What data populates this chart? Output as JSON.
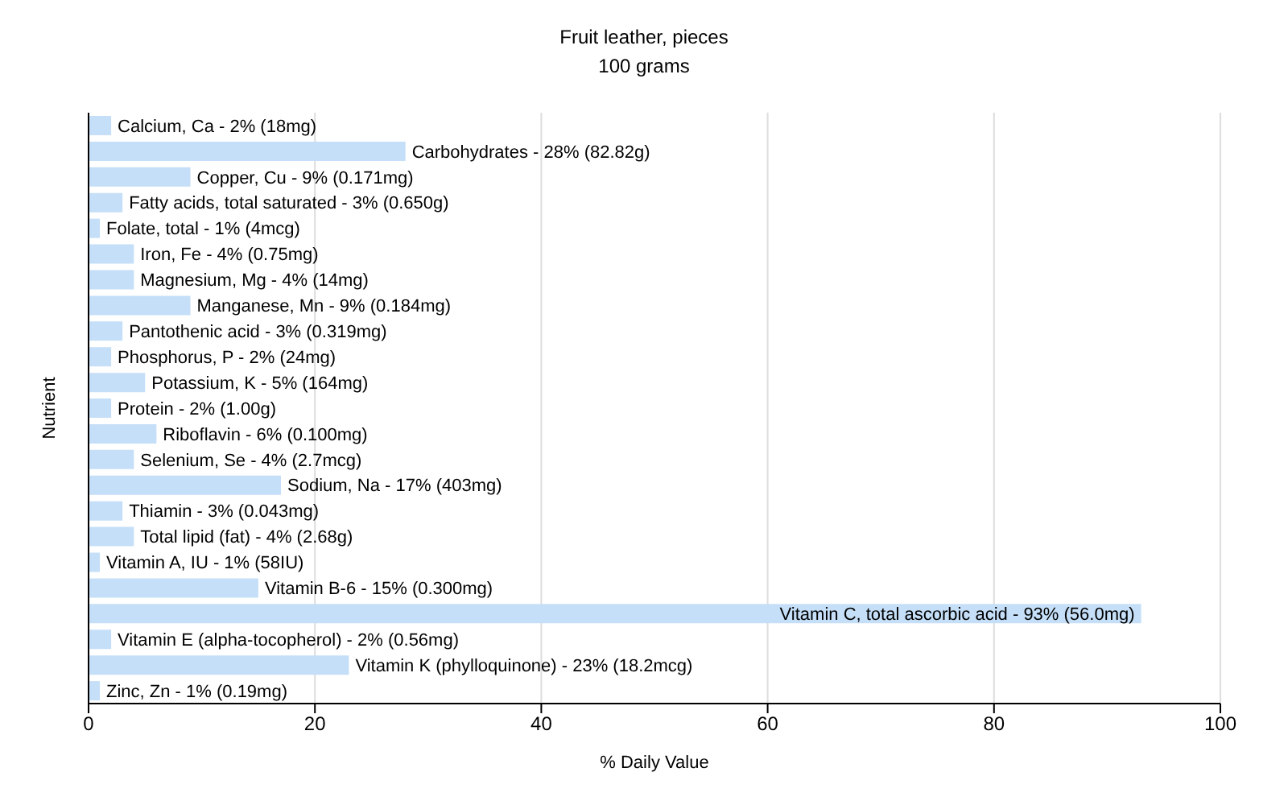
{
  "chart_data": {
    "type": "bar",
    "orientation": "horizontal",
    "title": "Fruit leather, pieces",
    "subtitle": "100 grams",
    "xlabel": "% Daily Value",
    "ylabel": "Nutrient",
    "categories": [
      "Calcium, Ca - 2% (18mg)",
      "Carbohydrates - 28% (82.82g)",
      "Copper, Cu - 9% (0.171mg)",
      "Fatty acids, total saturated - 3% (0.650g)",
      "Folate, total - 1% (4mcg)",
      "Iron, Fe - 4% (0.75mg)",
      "Magnesium, Mg - 4% (14mg)",
      "Manganese, Mn - 9% (0.184mg)",
      "Pantothenic acid - 3% (0.319mg)",
      "Phosphorus, P - 2% (24mg)",
      "Potassium, K - 5% (164mg)",
      "Protein - 2% (1.00g)",
      "Riboflavin - 6% (0.100mg)",
      "Selenium, Se - 4% (2.7mcg)",
      "Sodium, Na - 17% (403mg)",
      "Thiamin - 3% (0.043mg)",
      "Total lipid (fat) - 4% (2.68g)",
      "Vitamin A, IU - 1% (58IU)",
      "Vitamin B-6 - 15% (0.300mg)",
      "Vitamin C, total ascorbic acid - 93% (56.0mg)",
      "Vitamin E (alpha-tocopherol) - 2% (0.56mg)",
      "Vitamin K (phylloquinone) - 23% (18.2mcg)",
      "Zinc, Zn - 1% (0.19mg)"
    ],
    "values": [
      2,
      28,
      9,
      3,
      1,
      4,
      4,
      9,
      3,
      2,
      5,
      2,
      6,
      4,
      17,
      3,
      4,
      1,
      15,
      93,
      2,
      23,
      1
    ],
    "color": "#c5dff8",
    "xlim": [
      0,
      100
    ],
    "xticks": [
      0,
      20,
      40,
      60,
      80,
      100
    ],
    "grid": "x",
    "tick_labels": "x"
  }
}
